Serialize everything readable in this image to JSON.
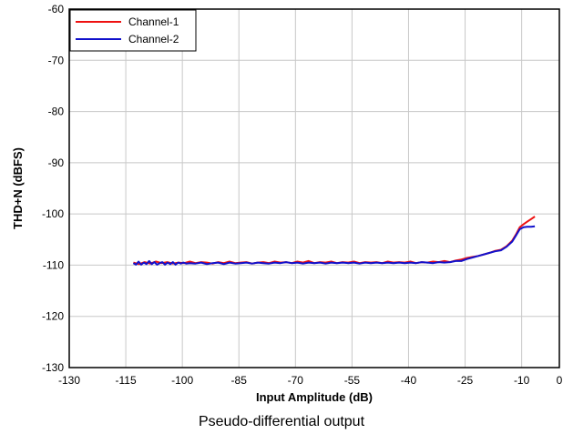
{
  "caption": "Pseudo-differential output",
  "chart_data": {
    "type": "line",
    "xlabel": "Input Amplitude (dB)",
    "ylabel": "THD+N (dBFS)",
    "xlim": [
      -130,
      0
    ],
    "ylim": [
      -130,
      -60
    ],
    "xticks": [
      -130,
      -115,
      -100,
      -85,
      -70,
      -55,
      -40,
      -25,
      -10,
      0
    ],
    "yticks": [
      -130,
      -120,
      -110,
      -100,
      -90,
      -80,
      -70,
      -60
    ],
    "grid": true,
    "legend_position": "top-left",
    "series": [
      {
        "name": "Channel-1",
        "color": "#ee1111",
        "x": [
          -113,
          -111.5,
          -110,
          -108.5,
          -107,
          -105.5,
          -104,
          -102.5,
          -101,
          -99.5,
          -98,
          -96.5,
          -95,
          -93.5,
          -92,
          -90.5,
          -89,
          -87.5,
          -86,
          -84.5,
          -83,
          -81.5,
          -80,
          -78.5,
          -77,
          -75.5,
          -74,
          -72.5,
          -71,
          -69.5,
          -68,
          -66.5,
          -65,
          -63.5,
          -62,
          -60.5,
          -59,
          -57.5,
          -56,
          -54.5,
          -53,
          -51.5,
          -50,
          -48.5,
          -47,
          -45.5,
          -44,
          -42.5,
          -41,
          -39.5,
          -38,
          -36.5,
          -35,
          -33.5,
          -32,
          -30.5,
          -29,
          -27.5,
          -26,
          -24.5,
          -23,
          -21.5,
          -20,
          -18.5,
          -17,
          -15.5,
          -14,
          -12.5,
          -11.5,
          -10.5,
          -9.5,
          -8.5,
          -7.5,
          -6.5
        ],
        "y": [
          -109.5,
          -109.8,
          -109.4,
          -109.7,
          -109.3,
          -109.6,
          -109.4,
          -109.7,
          -109.5,
          -109.6,
          -109.3,
          -109.6,
          -109.4,
          -109.5,
          -109.7,
          -109.4,
          -109.6,
          -109.3,
          -109.6,
          -109.5,
          -109.4,
          -109.7,
          -109.5,
          -109.4,
          -109.6,
          -109.3,
          -109.5,
          -109.4,
          -109.6,
          -109.3,
          -109.5,
          -109.2,
          -109.6,
          -109.4,
          -109.5,
          -109.3,
          -109.6,
          -109.4,
          -109.5,
          -109.3,
          -109.6,
          -109.4,
          -109.5,
          -109.4,
          -109.6,
          -109.3,
          -109.5,
          -109.4,
          -109.5,
          -109.3,
          -109.6,
          -109.4,
          -109.5,
          -109.3,
          -109.4,
          -109.2,
          -109.4,
          -109.1,
          -108.9,
          -108.6,
          -108.4,
          -108.2,
          -107.9,
          -107.6,
          -107.2,
          -107.0,
          -106.3,
          -105.2,
          -104.0,
          -102.6,
          -102.0,
          -101.5,
          -101.0,
          -100.5
        ]
      },
      {
        "name": "Channel-2",
        "color": "#1111cc",
        "x": [
          -113,
          -112.3,
          -111.6,
          -110.9,
          -110.2,
          -109.5,
          -108.8,
          -108.1,
          -107.4,
          -106.7,
          -106,
          -105.3,
          -104.6,
          -103.9,
          -103.2,
          -102.5,
          -101.8,
          -101.1,
          -100.4,
          -99.7,
          -99,
          -98,
          -96.5,
          -95,
          -93.5,
          -92,
          -90.5,
          -89,
          -87.5,
          -86,
          -84.5,
          -83,
          -81.5,
          -80,
          -78.5,
          -77,
          -75.5,
          -74,
          -72.5,
          -71,
          -69.5,
          -68,
          -66.5,
          -65,
          -63.5,
          -62,
          -60.5,
          -59,
          -57.5,
          -56,
          -54.5,
          -53,
          -51.5,
          -50,
          -48.5,
          -47,
          -45.5,
          -44,
          -42.5,
          -41,
          -39.5,
          -38,
          -36.5,
          -35,
          -33.5,
          -32,
          -30.5,
          -29,
          -27.5,
          -26,
          -24.5,
          -23,
          -21.5,
          -20,
          -18.5,
          -17,
          -15.5,
          -14,
          -12.5,
          -11.5,
          -10.5,
          -9.5,
          -8.5,
          -7.5,
          -6.5
        ],
        "y": [
          -109.6,
          -109.9,
          -109.3,
          -109.9,
          -109.5,
          -109.8,
          -109.2,
          -109.8,
          -109.4,
          -109.9,
          -109.6,
          -109.4,
          -109.9,
          -109.5,
          -109.8,
          -109.4,
          -109.9,
          -109.5,
          -109.7,
          -109.5,
          -109.7,
          -109.6,
          -109.7,
          -109.5,
          -109.8,
          -109.6,
          -109.5,
          -109.8,
          -109.5,
          -109.7,
          -109.6,
          -109.5,
          -109.7,
          -109.5,
          -109.6,
          -109.7,
          -109.5,
          -109.6,
          -109.4,
          -109.6,
          -109.5,
          -109.7,
          -109.5,
          -109.6,
          -109.5,
          -109.7,
          -109.5,
          -109.6,
          -109.5,
          -109.6,
          -109.5,
          -109.7,
          -109.5,
          -109.6,
          -109.5,
          -109.6,
          -109.5,
          -109.6,
          -109.5,
          -109.6,
          -109.5,
          -109.6,
          -109.4,
          -109.5,
          -109.6,
          -109.4,
          -109.5,
          -109.4,
          -109.2,
          -109.2,
          -108.8,
          -108.5,
          -108.2,
          -107.9,
          -107.6,
          -107.3,
          -107.1,
          -106.4,
          -105.4,
          -104.2,
          -103.0,
          -102.6,
          -102.5,
          -102.5,
          -102.4
        ]
      }
    ]
  }
}
